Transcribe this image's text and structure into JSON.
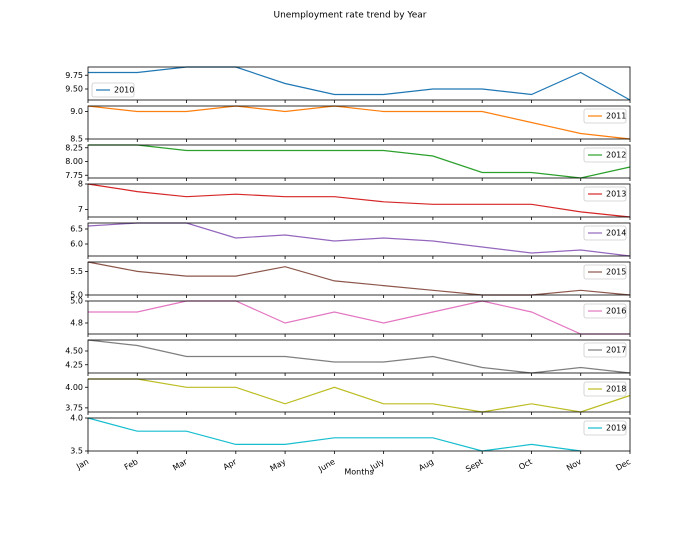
{
  "chart_data": {
    "type": "line",
    "title": "Unemployment rate trend by Year",
    "xlabel": "Months",
    "categories": [
      "Jan",
      "Feb",
      "Mar",
      "Apr",
      "May",
      "June",
      "July",
      "Aug",
      "Sept",
      "Oct",
      "Nov",
      "Dec"
    ],
    "series": [
      {
        "name": "2010",
        "color": "#1f77b4",
        "legend": "lower left",
        "values": [
          9.8,
          9.8,
          9.9,
          9.9,
          9.6,
          9.4,
          9.4,
          9.5,
          9.5,
          9.4,
          9.8,
          9.3
        ],
        "ylim": [
          9.3,
          9.9
        ],
        "yticks": [
          {
            "value": 9.5,
            "label": "9.50"
          },
          {
            "value": 9.75,
            "label": "9.75"
          }
        ]
      },
      {
        "name": "2011",
        "color": "#ff7f0e",
        "legend": "upper right",
        "values": [
          9.1,
          9.0,
          9.0,
          9.1,
          9.0,
          9.1,
          9.0,
          9.0,
          9.0,
          8.8,
          8.6,
          8.5
        ],
        "ylim": [
          8.5,
          9.1
        ],
        "yticks": [
          8.5,
          {
            "value": 9,
            "label": "9.0"
          }
        ]
      },
      {
        "name": "2012",
        "color": "#2ca02c",
        "legend": "upper right",
        "values": [
          8.3,
          8.3,
          8.2,
          8.2,
          8.2,
          8.2,
          8.2,
          8.1,
          7.8,
          7.8,
          7.7,
          7.9
        ],
        "ylim": [
          7.7,
          8.3
        ],
        "yticks": [
          7.75,
          {
            "value": 8,
            "label": "8.00"
          },
          8.25
        ]
      },
      {
        "name": "2013",
        "color": "#d62728",
        "legend": "upper right",
        "values": [
          8.0,
          7.7,
          7.5,
          7.6,
          7.5,
          7.5,
          7.3,
          7.2,
          7.2,
          7.2,
          6.9,
          6.7
        ],
        "ylim": [
          6.7,
          8.0
        ],
        "yticks": [
          7,
          8
        ]
      },
      {
        "name": "2014",
        "color": "#9467bd",
        "legend": "upper right",
        "values": [
          6.6,
          6.7,
          6.7,
          6.2,
          6.3,
          6.1,
          6.2,
          6.1,
          5.9,
          5.7,
          5.8,
          5.6
        ],
        "ylim": [
          5.6,
          6.7
        ],
        "yticks": [
          {
            "value": 6,
            "label": "6.0"
          },
          6.5
        ]
      },
      {
        "name": "2015",
        "color": "#8c564b",
        "legend": "upper right",
        "values": [
          5.7,
          5.5,
          5.4,
          5.4,
          5.6,
          5.3,
          5.2,
          5.1,
          5.0,
          5.0,
          5.1,
          5.0
        ],
        "ylim": [
          5.0,
          5.7
        ],
        "yticks": [
          {
            "value": 5,
            "label": "5.0"
          },
          5.5
        ]
      },
      {
        "name": "2016",
        "color": "#e377c2",
        "legend": "upper right",
        "values": [
          4.9,
          4.9,
          5.0,
          5.0,
          4.8,
          4.9,
          4.8,
          4.9,
          5.0,
          4.9,
          4.7,
          4.7
        ],
        "ylim": [
          4.7,
          5.0
        ],
        "yticks": [
          4.8,
          {
            "value": 5,
            "label": "5.0"
          }
        ]
      },
      {
        "name": "2017",
        "color": "#7f7f7f",
        "legend": "upper right",
        "values": [
          4.7,
          4.6,
          4.4,
          4.4,
          4.4,
          4.3,
          4.3,
          4.4,
          4.2,
          4.1,
          4.2,
          4.1
        ],
        "ylim": [
          4.1,
          4.7
        ],
        "yticks": [
          4.25,
          {
            "value": 4.5,
            "label": "4.50"
          }
        ]
      },
      {
        "name": "2018",
        "color": "#bcbd22",
        "legend": "upper right",
        "values": [
          4.1,
          4.1,
          4.0,
          4.0,
          3.8,
          4.0,
          3.8,
          3.8,
          3.7,
          3.8,
          3.7,
          3.9
        ],
        "ylim": [
          3.7,
          4.1
        ],
        "yticks": [
          3.75,
          {
            "value": 4,
            "label": "4.00"
          }
        ]
      },
      {
        "name": "2019",
        "color": "#17becf",
        "legend": "upper right",
        "values": [
          4.0,
          3.8,
          3.8,
          3.6,
          3.6,
          3.7,
          3.7,
          3.7,
          3.5,
          3.6,
          3.5,
          null
        ],
        "ylim": [
          3.5,
          4.0
        ],
        "yticks": [
          3.5,
          {
            "value": 4,
            "label": "4.0"
          }
        ]
      }
    ]
  }
}
